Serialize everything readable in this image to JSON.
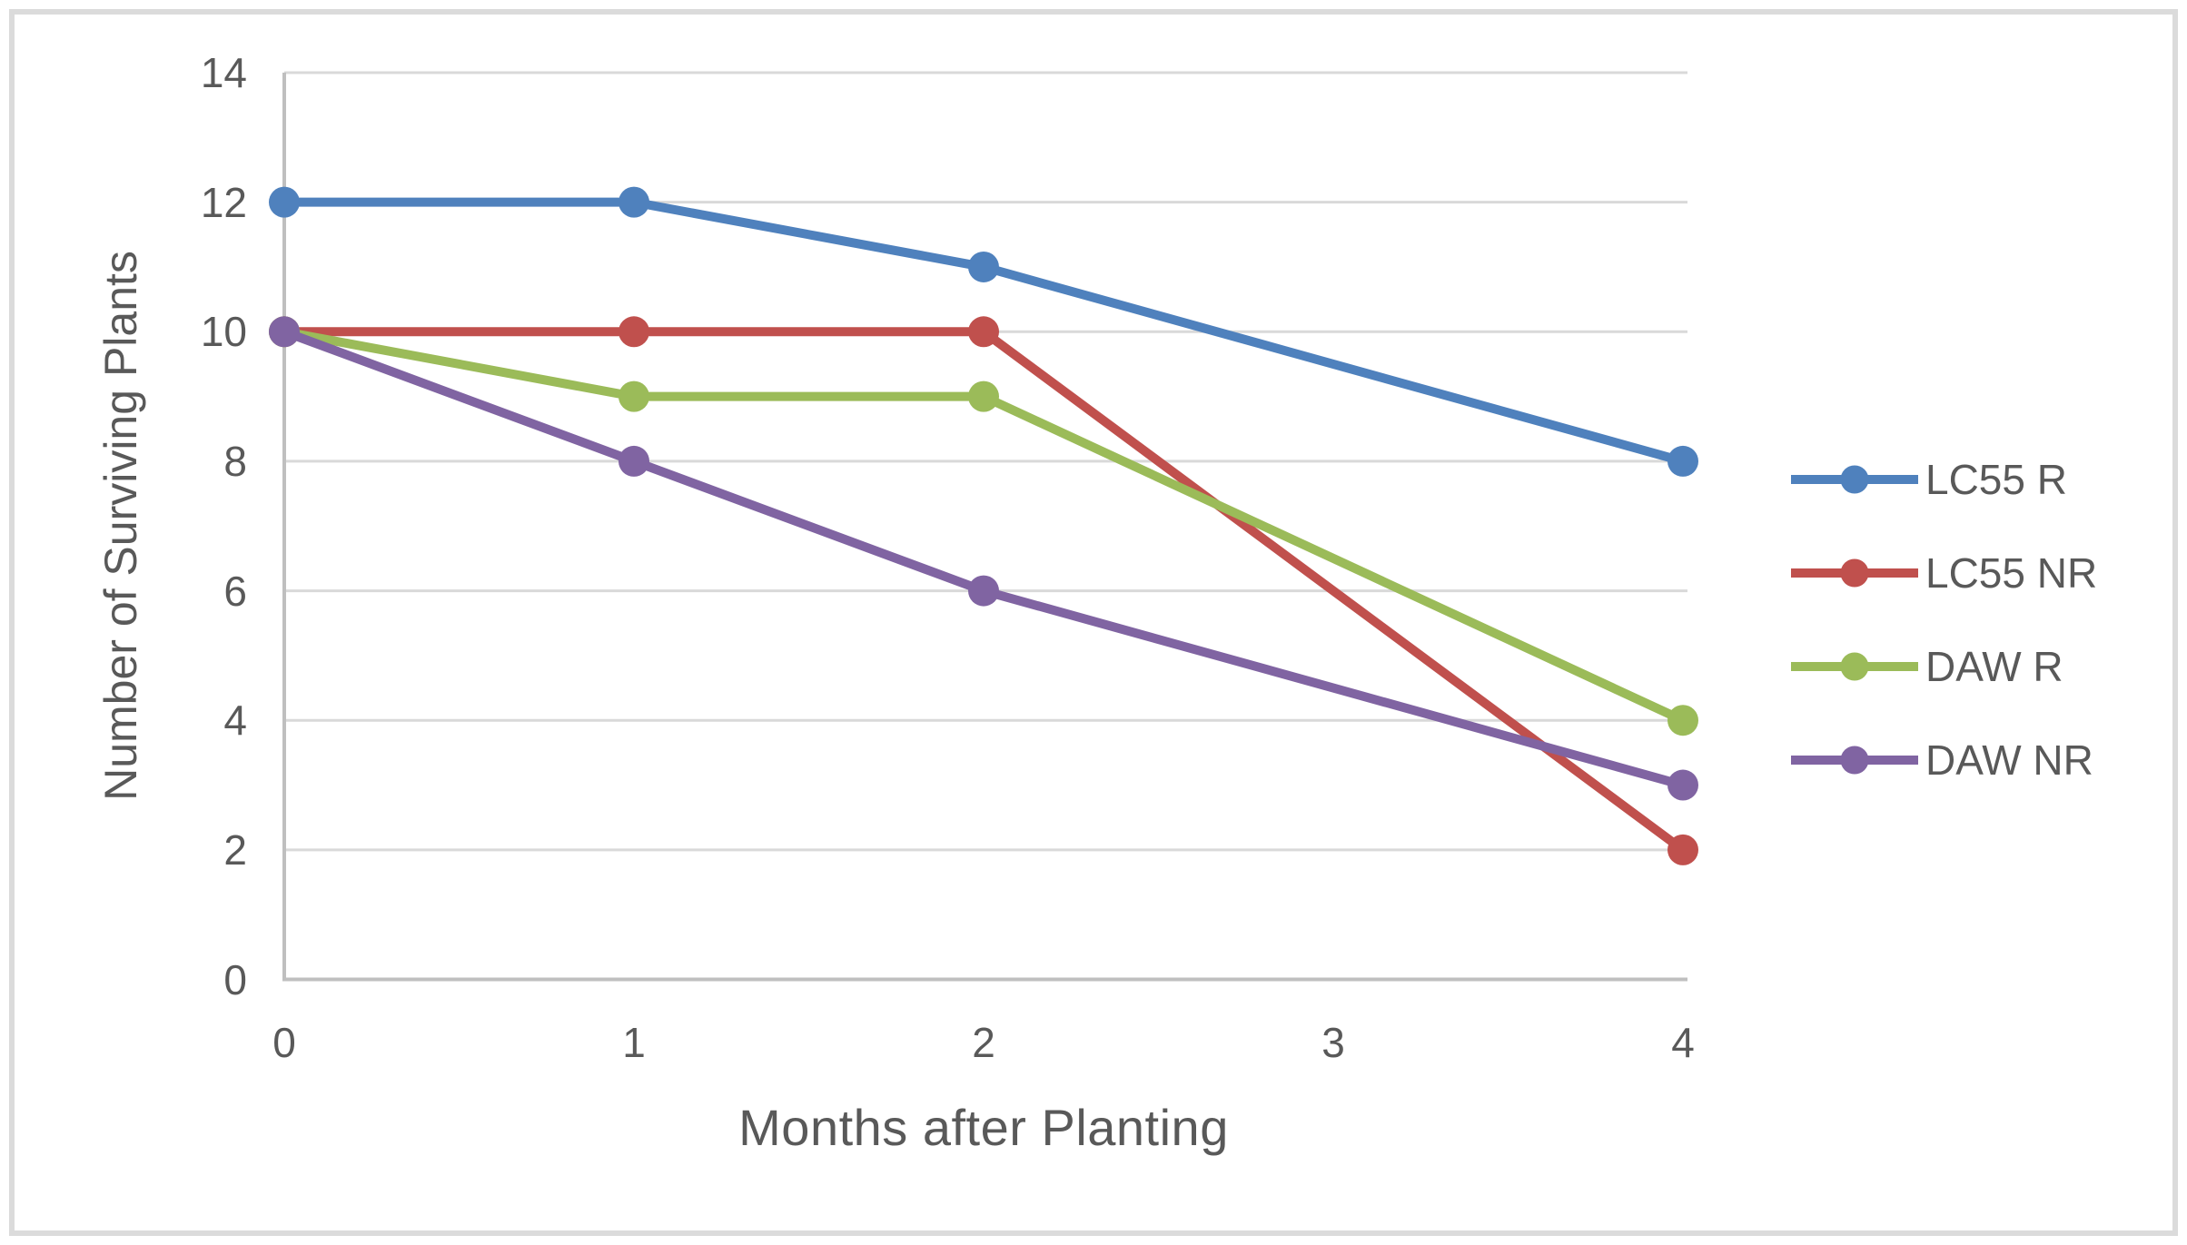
{
  "figure": {
    "background_color": "#FFFFFF",
    "border_color": "#DBDBDB"
  },
  "chart_data": {
    "type": "line",
    "title": "",
    "x": [
      0,
      1,
      2,
      4
    ],
    "x_axis": {
      "label": "Months after Planting",
      "ticks": [
        "0",
        "1",
        "2",
        "3",
        "4"
      ],
      "range": [
        0,
        4
      ]
    },
    "y_axis": {
      "label": "Number of Surviving Plants",
      "ticks": [
        "0",
        "2",
        "4",
        "6",
        "8",
        "10",
        "12",
        "14"
      ],
      "range": [
        0,
        14
      ],
      "tick_step": 2
    },
    "series": [
      {
        "name": "LC55 R",
        "color": "#4F81BD",
        "values": [
          12,
          12,
          11,
          8
        ]
      },
      {
        "name": "LC55 NR",
        "color": "#C0504D",
        "values": [
          10,
          10,
          10,
          2
        ]
      },
      {
        "name": "DAW R",
        "color": "#9BBB59",
        "values": [
          10,
          9,
          9,
          4
        ]
      },
      {
        "name": "DAW NR",
        "color": "#8064A2",
        "values": [
          10,
          8,
          6,
          3
        ]
      }
    ],
    "legend_position": "right",
    "grid": "horizontal",
    "grid_color": "#D9D9D9",
    "axis_line_color": "#BFBFBF",
    "text_color": "#595959",
    "marker": "circle"
  }
}
